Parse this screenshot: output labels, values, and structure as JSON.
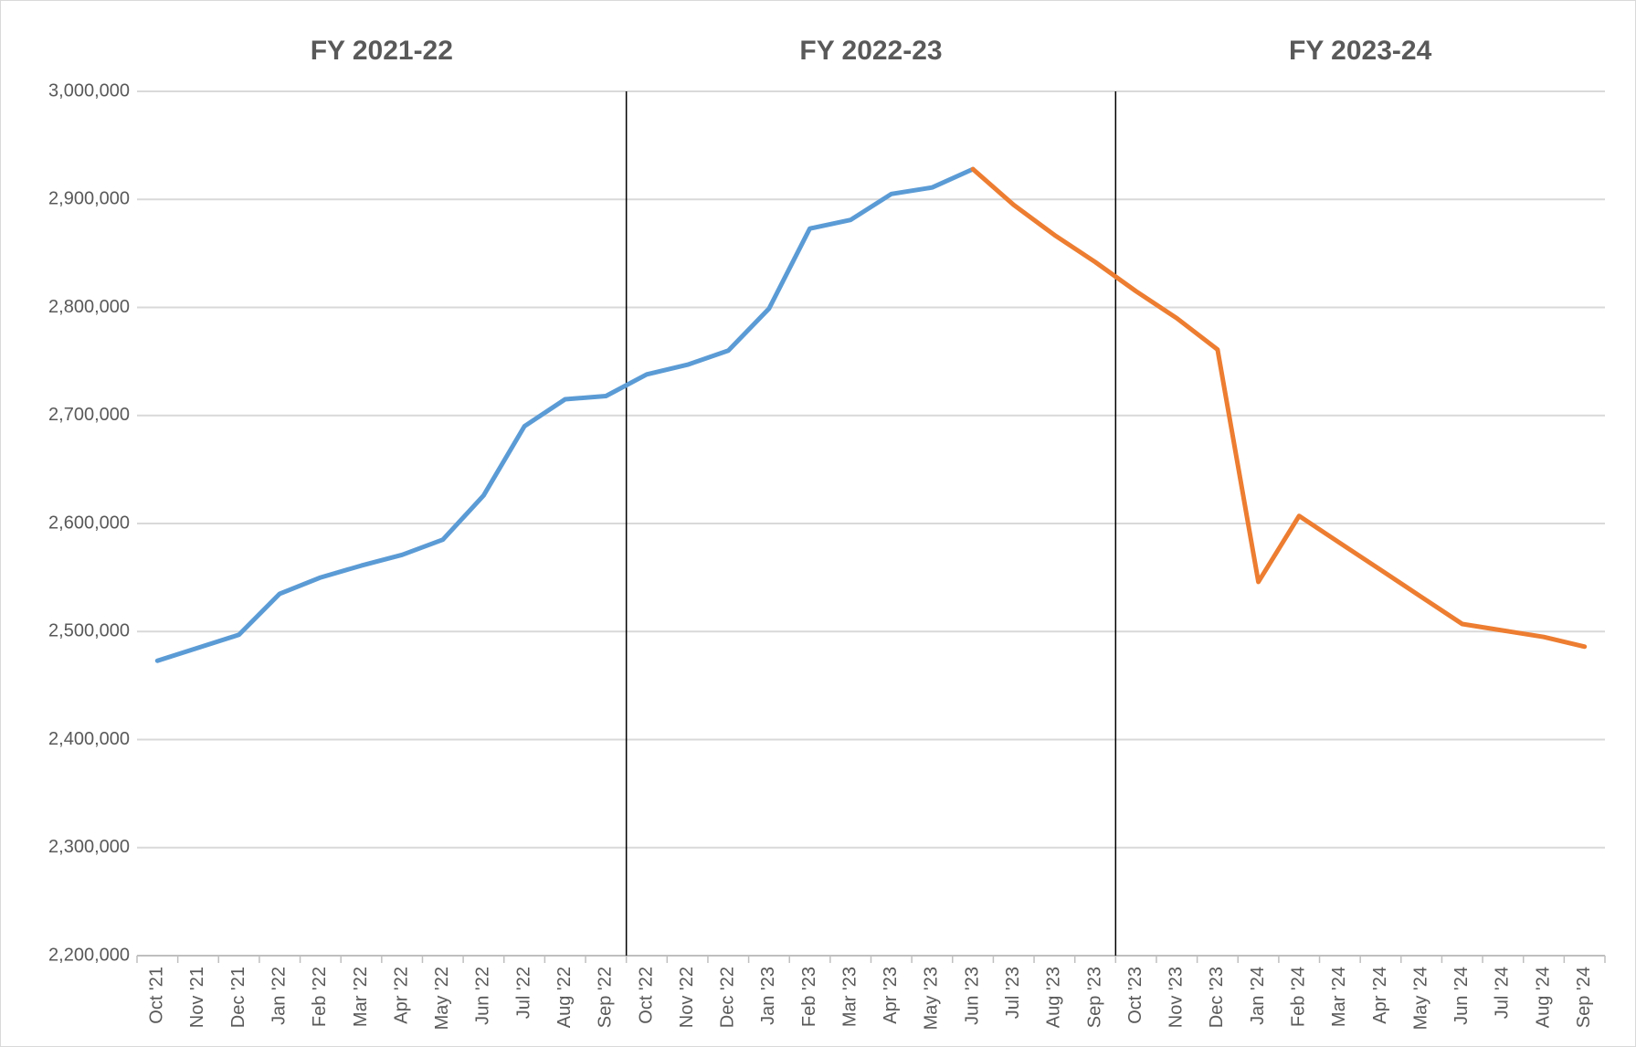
{
  "chart_data": {
    "type": "line",
    "periods": [
      "FY 2021-22",
      "FY 2022-23",
      "FY 2023-24"
    ],
    "categories": [
      "Oct '21",
      "Nov '21",
      "Dec '21",
      "Jan '22",
      "Feb '22",
      "Mar '22",
      "Apr '22",
      "May '22",
      "Jun '22",
      "Jul '22",
      "Aug '22",
      "Sep '22",
      "Oct '22",
      "Nov '22",
      "Dec '22",
      "Jan '23",
      "Feb '23",
      "Mar '23",
      "Apr '23",
      "May '23",
      "Jun '23",
      "Jul '23",
      "Aug '23",
      "Sep '23",
      "Oct '23",
      "Nov '23",
      "Dec '23",
      "Jan '24",
      "Feb '24",
      "Mar '24",
      "Apr '24",
      "May '24",
      "Jun '24",
      "Jul '24",
      "Aug '24",
      "Sep '24"
    ],
    "series": [
      {
        "color": "#5b9bd5",
        "values": [
          2473000,
          2485000,
          2497000,
          2535000,
          2550000,
          2561000,
          2571000,
          2585000,
          2626000,
          2690000,
          2715000,
          2718000,
          2738000,
          2747000,
          2760000,
          2799000,
          2873000,
          2881000,
          2905000,
          2911000,
          2928000,
          null,
          null,
          null,
          null,
          null,
          null,
          null,
          null,
          null,
          null,
          null,
          null,
          null,
          null,
          null
        ]
      },
      {
        "color": "#ed7d31",
        "values": [
          null,
          null,
          null,
          null,
          null,
          null,
          null,
          null,
          null,
          null,
          null,
          null,
          null,
          null,
          null,
          null,
          null,
          null,
          null,
          null,
          2928000,
          2895000,
          2867000,
          2842000,
          2815000,
          2790000,
          2761000,
          2546000,
          2607000,
          2582000,
          2557000,
          2532000,
          2507000,
          2501000,
          2495000,
          2486000
        ]
      }
    ],
    "ylim": [
      2200000,
      3000000
    ],
    "yticks": [
      {
        "value": 2200000,
        "label": "2,200,000"
      },
      {
        "value": 2300000,
        "label": "2,300,000"
      },
      {
        "value": 2400000,
        "label": "2,400,000"
      },
      {
        "value": 2500000,
        "label": "2,500,000"
      },
      {
        "value": 2600000,
        "label": "2,600,000"
      },
      {
        "value": 2700000,
        "label": "2,700,000"
      },
      {
        "value": 2800000,
        "label": "2,800,000"
      },
      {
        "value": 2900000,
        "label": "2,900,000"
      },
      {
        "value": 3000000,
        "label": "3,000,000"
      }
    ],
    "grid": true
  }
}
